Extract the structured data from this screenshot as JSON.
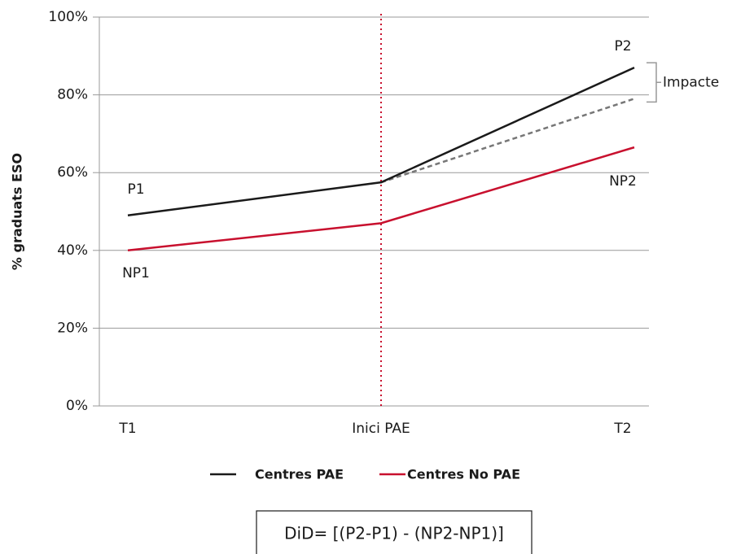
{
  "chart_data": {
    "type": "line",
    "ylabel": "% graduats ESO",
    "categories": [
      "T1",
      "Inici PAE",
      "T2"
    ],
    "series": [
      {
        "name": "Centres PAE",
        "color": "#1a1a1a",
        "values": [
          49,
          57.5,
          87
        ]
      },
      {
        "name": "Centres No PAE",
        "color": "#c8102e",
        "values": [
          40,
          47,
          66.5
        ]
      }
    ],
    "counterfactual": {
      "color": "#777777",
      "dashed": true,
      "values": [
        null,
        57.5,
        79
      ]
    },
    "ylim": [
      0,
      100
    ],
    "yticks": [
      {
        "value": 0,
        "label": "0%"
      },
      {
        "value": 20,
        "label": "20%"
      },
      {
        "value": 40,
        "label": "40%"
      },
      {
        "value": 60,
        "label": "60%"
      },
      {
        "value": 80,
        "label": "80%"
      },
      {
        "value": 100,
        "label": "100%"
      }
    ],
    "grid": true,
    "point_labels": [
      "P1",
      "NP1",
      "P2",
      "NP2"
    ],
    "impact_label": "Impacte",
    "impact_color": "#c8102e",
    "intervention_color": "#c8102e",
    "formula": "DiD= [(P2-P1) - (NP2-NP1)]",
    "legend": "bottom"
  }
}
